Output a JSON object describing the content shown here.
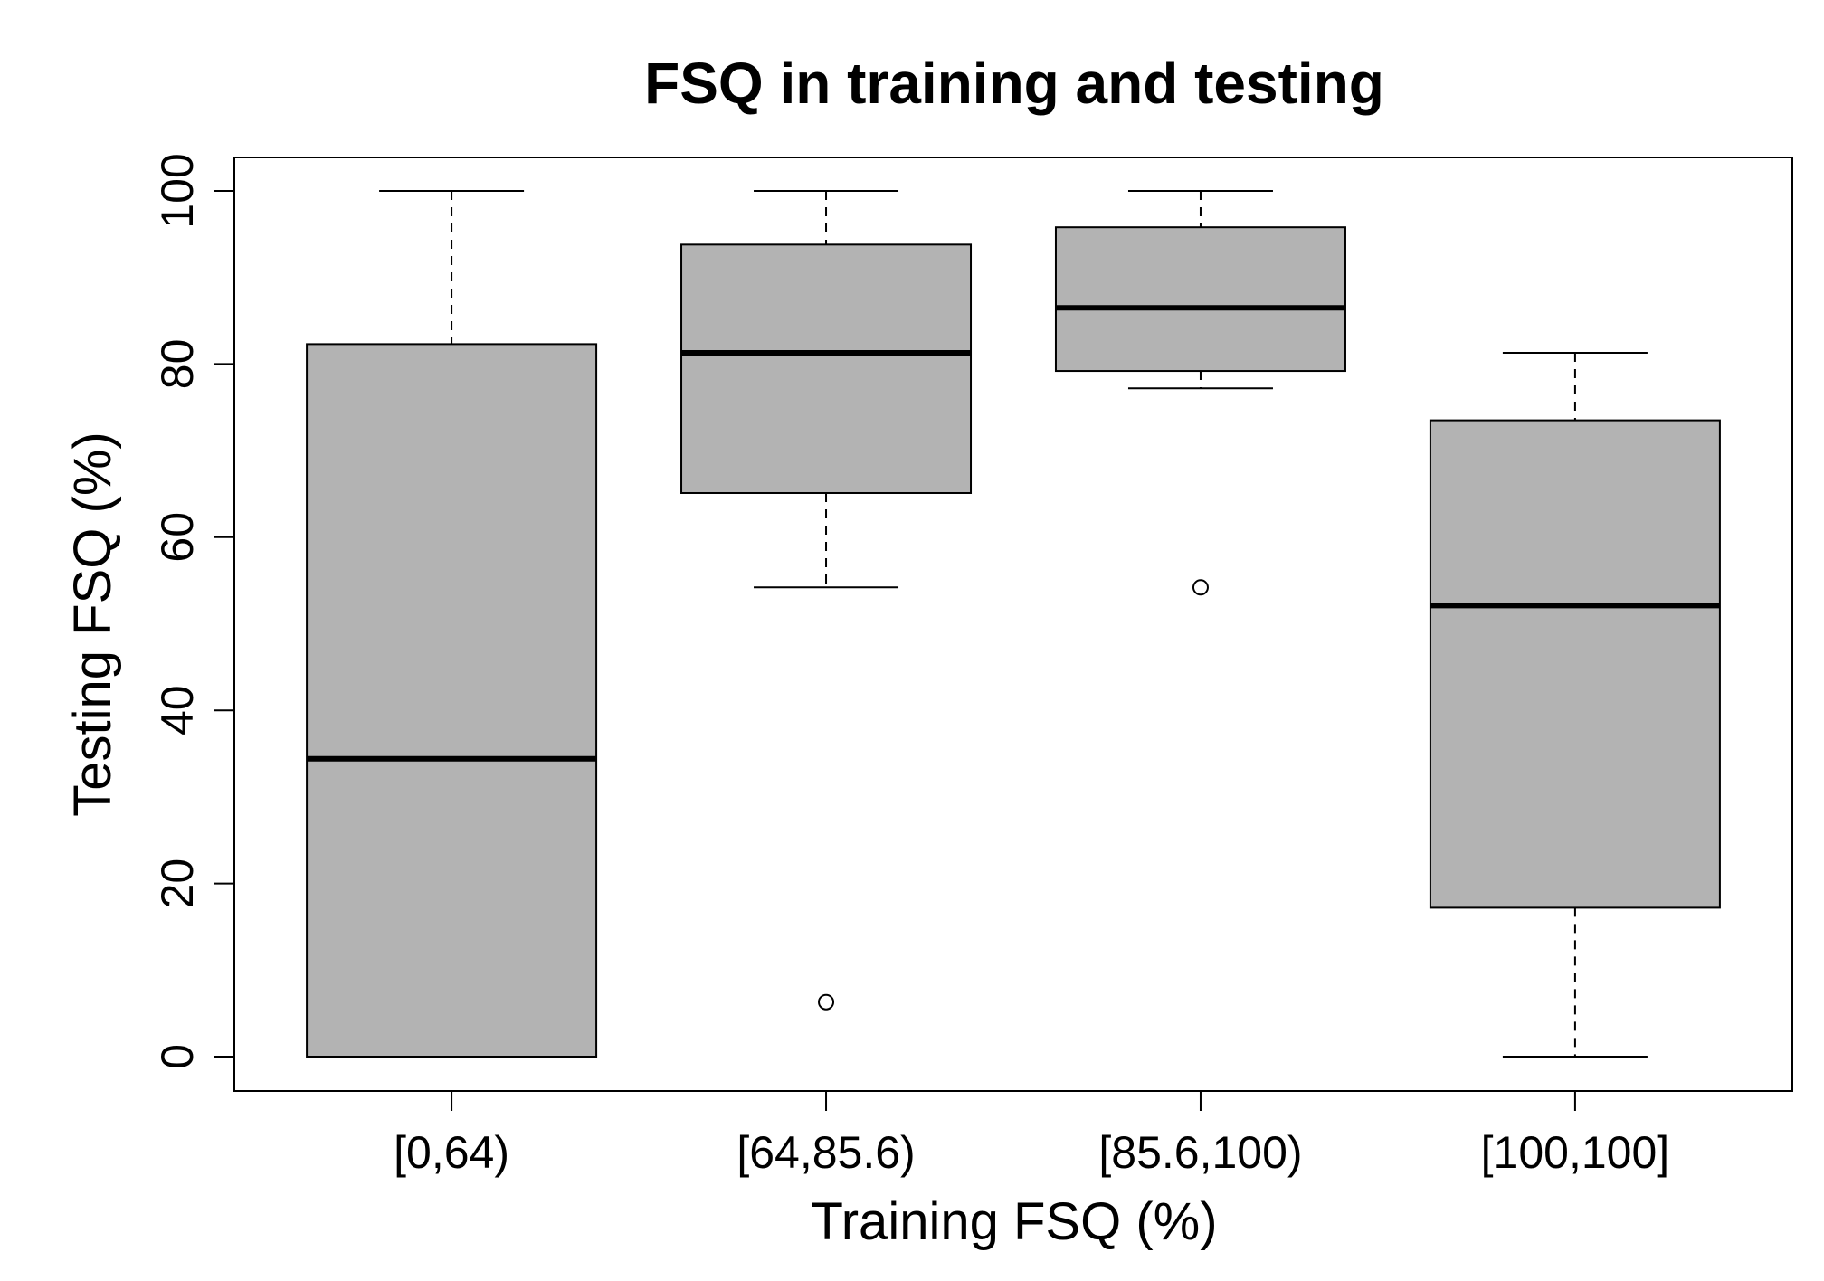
{
  "chart_data": {
    "type": "boxplot",
    "title": "FSQ in training and testing",
    "xlabel": "Training FSQ (%)",
    "ylabel": "Testing FSQ (%)",
    "ylim": [
      -4,
      104
    ],
    "yticks": [
      0,
      20,
      40,
      60,
      80,
      100
    ],
    "grid": false,
    "box_color": "#b3b3b3",
    "categories": [
      "[0,64)",
      "[64,85.6)",
      "[85.6,100)",
      "[100,100]"
    ],
    "boxes": [
      {
        "whisker_low": 0,
        "q1": 0,
        "median": 34.4,
        "q3": 82.3,
        "whisker_high": 100,
        "outliers": []
      },
      {
        "whisker_low": 54.2,
        "q1": 65.1,
        "median": 81.3,
        "q3": 93.8,
        "whisker_high": 100,
        "outliers": [
          6.3
        ]
      },
      {
        "whisker_low": 77.2,
        "q1": 79.2,
        "median": 86.5,
        "q3": 95.8,
        "whisker_high": 100,
        "outliers": [
          54.2
        ]
      },
      {
        "whisker_low": 0,
        "q1": 17.2,
        "median": 52.1,
        "q3": 73.5,
        "whisker_high": 81.3,
        "outliers": []
      }
    ]
  }
}
